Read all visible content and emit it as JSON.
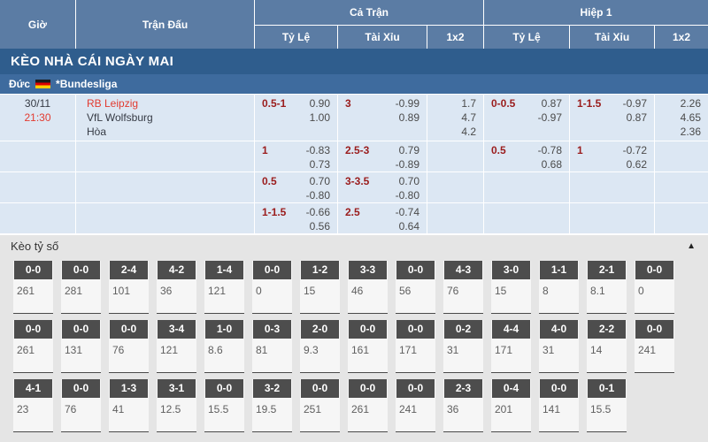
{
  "header": {
    "col_time": "Giờ",
    "col_match": "Trận Đấu",
    "group_full": "Cả Trận",
    "group_half": "Hiệp 1",
    "sub_handicap": "Tỷ Lệ",
    "sub_over_under": "Tài Xỉu",
    "sub_1x2": "1x2"
  },
  "section_banner": "KÈO NHÀ CÁI NGÀY MAI",
  "league": {
    "country": "Đức",
    "flag_icon": "germany-flag",
    "name": "*Bundesliga"
  },
  "match": {
    "date": "30/11",
    "time": "21:30",
    "home": "RB Leipzig",
    "away": "VfL Wolfsburg",
    "draw": "Hòa"
  },
  "odds": {
    "rows": [
      {
        "ft_hdp": [
          "0.5-1",
          "0.90",
          "1.00"
        ],
        "ft_ou": [
          "3",
          "-0.99",
          "0.89"
        ],
        "ft_1x2": [
          "1.7",
          "4.7",
          "4.2"
        ],
        "h1_hdp": [
          "0-0.5",
          "0.87",
          "-0.97"
        ],
        "h1_ou": [
          "1-1.5",
          "-0.97",
          "0.87"
        ],
        "h1_1x2": [
          "2.26",
          "4.65",
          "2.36"
        ]
      },
      {
        "ft_hdp": [
          "1",
          "-0.83",
          "0.73"
        ],
        "ft_ou": [
          "2.5-3",
          "0.79",
          "-0.89"
        ],
        "ft_1x2": [],
        "h1_hdp": [
          "0.5",
          "-0.78",
          "0.68"
        ],
        "h1_ou": [
          "1",
          "-0.72",
          "0.62"
        ],
        "h1_1x2": []
      },
      {
        "ft_hdp": [
          "0.5",
          "0.70",
          "-0.80"
        ],
        "ft_ou": [
          "3-3.5",
          "0.70",
          "-0.80"
        ],
        "ft_1x2": [],
        "h1_hdp": [],
        "h1_ou": [],
        "h1_1x2": []
      },
      {
        "ft_hdp": [
          "1-1.5",
          "-0.66",
          "0.56"
        ],
        "ft_ou": [
          "2.5",
          "-0.74",
          "0.64"
        ],
        "ft_1x2": [],
        "h1_hdp": [],
        "h1_ou": [],
        "h1_1x2": []
      }
    ]
  },
  "correct_score": {
    "title": "Kèo tỷ số",
    "collapse_icon": "▲",
    "rows": [
      [
        {
          "score": "0-0",
          "odds": "261"
        },
        {
          "score": "0-0",
          "odds": "281"
        },
        {
          "score": "2-4",
          "odds": "101"
        },
        {
          "score": "4-2",
          "odds": "36"
        },
        {
          "score": "1-4",
          "odds": "121"
        },
        {
          "score": "0-0",
          "odds": "0"
        },
        {
          "score": "1-2",
          "odds": "15"
        },
        {
          "score": "3-3",
          "odds": "46"
        },
        {
          "score": "0-0",
          "odds": "56"
        },
        {
          "score": "4-3",
          "odds": "76"
        },
        {
          "score": "3-0",
          "odds": "15"
        },
        {
          "score": "1-1",
          "odds": "8"
        },
        {
          "score": "2-1",
          "odds": "8.1"
        },
        {
          "score": "0-0",
          "odds": "0"
        }
      ],
      [
        {
          "score": "0-0",
          "odds": "261"
        },
        {
          "score": "0-0",
          "odds": "131"
        },
        {
          "score": "0-0",
          "odds": "76"
        },
        {
          "score": "3-4",
          "odds": "121"
        },
        {
          "score": "1-0",
          "odds": "8.6"
        },
        {
          "score": "0-3",
          "odds": "81"
        },
        {
          "score": "2-0",
          "odds": "9.3"
        },
        {
          "score": "0-0",
          "odds": "161"
        },
        {
          "score": "0-0",
          "odds": "171"
        },
        {
          "score": "0-2",
          "odds": "31"
        },
        {
          "score": "4-4",
          "odds": "171"
        },
        {
          "score": "4-0",
          "odds": "31"
        },
        {
          "score": "2-2",
          "odds": "14"
        },
        {
          "score": "0-0",
          "odds": "241"
        }
      ],
      [
        {
          "score": "4-1",
          "odds": "23"
        },
        {
          "score": "0-0",
          "odds": "76"
        },
        {
          "score": "1-3",
          "odds": "41"
        },
        {
          "score": "3-1",
          "odds": "12.5"
        },
        {
          "score": "0-0",
          "odds": "15.5"
        },
        {
          "score": "3-2",
          "odds": "19.5"
        },
        {
          "score": "0-0",
          "odds": "251"
        },
        {
          "score": "0-0",
          "odds": "261"
        },
        {
          "score": "0-0",
          "odds": "241"
        },
        {
          "score": "2-3",
          "odds": "36"
        },
        {
          "score": "0-4",
          "odds": "201"
        },
        {
          "score": "0-0",
          "odds": "141"
        },
        {
          "score": "0-1",
          "odds": "15.5"
        },
        null
      ]
    ]
  },
  "colors": {
    "header_blue": "#5b7ca4",
    "banner_blue": "#2f5d8d",
    "league_blue": "#3e6b9e",
    "row_bg": "#dce7f3",
    "red_accent": "#e23b30",
    "handicap_maroon": "#9a1c1c",
    "odds_text": "#4a4a4a",
    "badge_bg": "#4d4d4d",
    "section_bg": "#e5e5e5"
  }
}
